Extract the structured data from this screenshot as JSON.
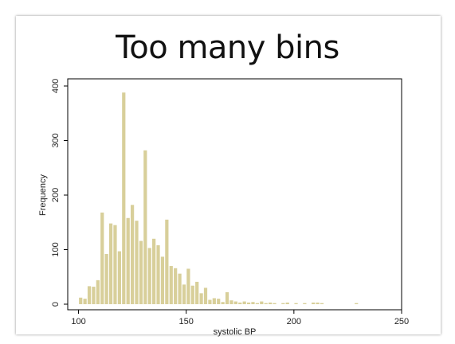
{
  "slide": {
    "title": "Too many bins"
  },
  "chart_data": {
    "type": "bar",
    "title": "Too many bins",
    "xlabel": "systolic BP",
    "ylabel": "Frequency",
    "xlim": [
      95,
      250
    ],
    "ylim": [
      0,
      400
    ],
    "xticks": [
      100,
      150,
      200,
      250
    ],
    "yticks": [
      0,
      100,
      200,
      300,
      400
    ],
    "bar_color": "#d8cf9a",
    "bin_width": 2,
    "bins": [
      {
        "x": 100,
        "y": 12
      },
      {
        "x": 102,
        "y": 10
      },
      {
        "x": 104,
        "y": 33
      },
      {
        "x": 106,
        "y": 32
      },
      {
        "x": 108,
        "y": 44
      },
      {
        "x": 110,
        "y": 168
      },
      {
        "x": 112,
        "y": 92
      },
      {
        "x": 114,
        "y": 148
      },
      {
        "x": 116,
        "y": 145
      },
      {
        "x": 118,
        "y": 97
      },
      {
        "x": 120,
        "y": 388
      },
      {
        "x": 122,
        "y": 158
      },
      {
        "x": 124,
        "y": 182
      },
      {
        "x": 126,
        "y": 153
      },
      {
        "x": 128,
        "y": 116
      },
      {
        "x": 130,
        "y": 282
      },
      {
        "x": 132,
        "y": 103
      },
      {
        "x": 134,
        "y": 120
      },
      {
        "x": 136,
        "y": 108
      },
      {
        "x": 138,
        "y": 87
      },
      {
        "x": 140,
        "y": 155
      },
      {
        "x": 142,
        "y": 70
      },
      {
        "x": 144,
        "y": 66
      },
      {
        "x": 146,
        "y": 56
      },
      {
        "x": 148,
        "y": 36
      },
      {
        "x": 150,
        "y": 65
      },
      {
        "x": 152,
        "y": 34
      },
      {
        "x": 154,
        "y": 41
      },
      {
        "x": 156,
        "y": 20
      },
      {
        "x": 158,
        "y": 30
      },
      {
        "x": 160,
        "y": 8
      },
      {
        "x": 162,
        "y": 11
      },
      {
        "x": 164,
        "y": 10
      },
      {
        "x": 166,
        "y": 4
      },
      {
        "x": 168,
        "y": 22
      },
      {
        "x": 170,
        "y": 7
      },
      {
        "x": 172,
        "y": 5
      },
      {
        "x": 174,
        "y": 3
      },
      {
        "x": 176,
        "y": 5
      },
      {
        "x": 178,
        "y": 3
      },
      {
        "x": 180,
        "y": 4
      },
      {
        "x": 182,
        "y": 2
      },
      {
        "x": 184,
        "y": 5
      },
      {
        "x": 186,
        "y": 2
      },
      {
        "x": 188,
        "y": 3
      },
      {
        "x": 190,
        "y": 2
      },
      {
        "x": 194,
        "y": 2
      },
      {
        "x": 196,
        "y": 3
      },
      {
        "x": 200,
        "y": 2
      },
      {
        "x": 204,
        "y": 2
      },
      {
        "x": 208,
        "y": 3
      },
      {
        "x": 210,
        "y": 3
      },
      {
        "x": 212,
        "y": 2
      },
      {
        "x": 228,
        "y": 2
      }
    ],
    "grid": false,
    "legend": "none"
  }
}
